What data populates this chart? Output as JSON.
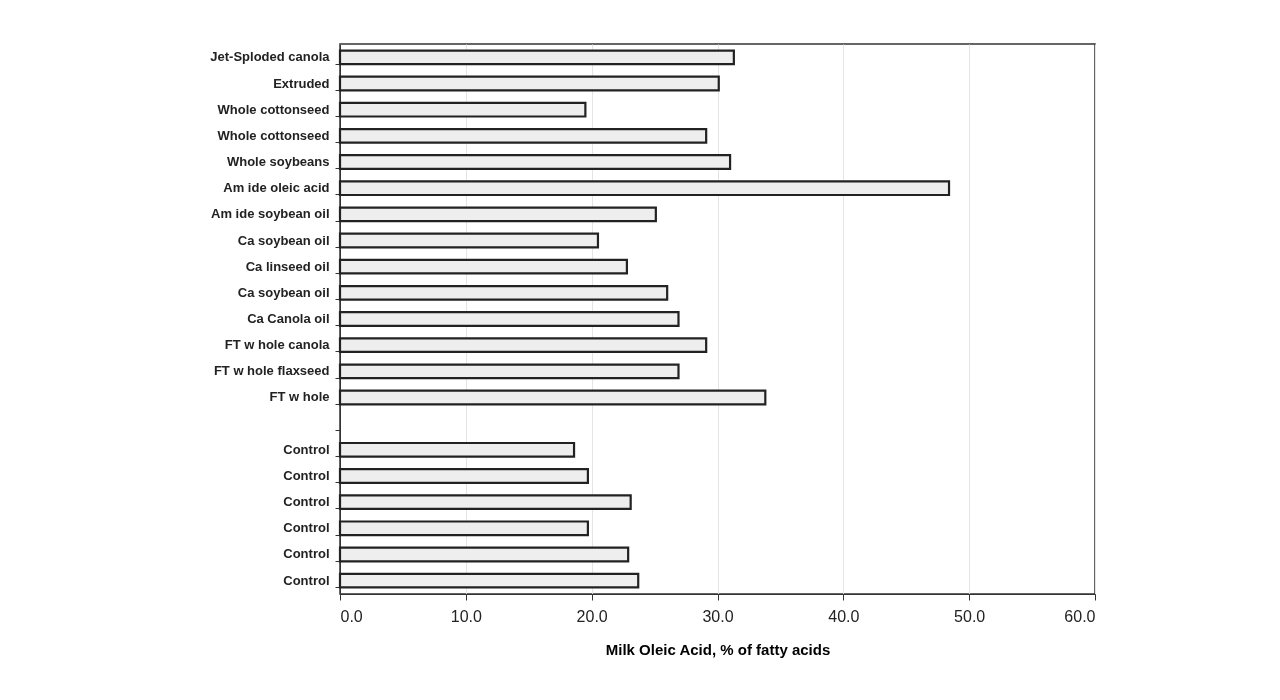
{
  "chart_data": {
    "type": "bar",
    "orientation": "horizontal",
    "xlabel": "Milk Oleic Acid, % of fatty acids",
    "categories": [
      "Jet-Sploded canola",
      "Extruded",
      "Whole cottonseed",
      "Whole cottonseed",
      "Whole soybeans",
      "Am ide oleic acid",
      "Am ide soybean oil",
      "Ca soybean oil",
      "Ca linseed oil",
      "Ca soybean oil",
      "Ca Canola oil",
      "FT w hole canola",
      "FT w hole flaxseed",
      "FT w hole",
      null,
      "Control",
      "Control",
      "Control",
      "Control",
      "Control",
      "Control"
    ],
    "values": [
      31.3,
      30.1,
      19.5,
      29.1,
      31.0,
      48.4,
      25.1,
      20.5,
      22.8,
      26.0,
      26.9,
      29.1,
      26.9,
      33.8,
      null,
      18.6,
      19.7,
      23.1,
      19.7,
      22.9,
      23.7
    ],
    "color": "#eeeeee",
    "xlim": [
      0,
      60
    ],
    "xticks": [
      {
        "value": 0,
        "label": "0.0"
      },
      {
        "value": 10,
        "label": "10.0"
      },
      {
        "value": 20,
        "label": "20.0"
      },
      {
        "value": 30,
        "label": "30.0"
      },
      {
        "value": 40,
        "label": "40.0"
      },
      {
        "value": 50,
        "label": "50.0"
      },
      {
        "value": 60,
        "label": "60.0"
      }
    ],
    "grid": "x"
  }
}
